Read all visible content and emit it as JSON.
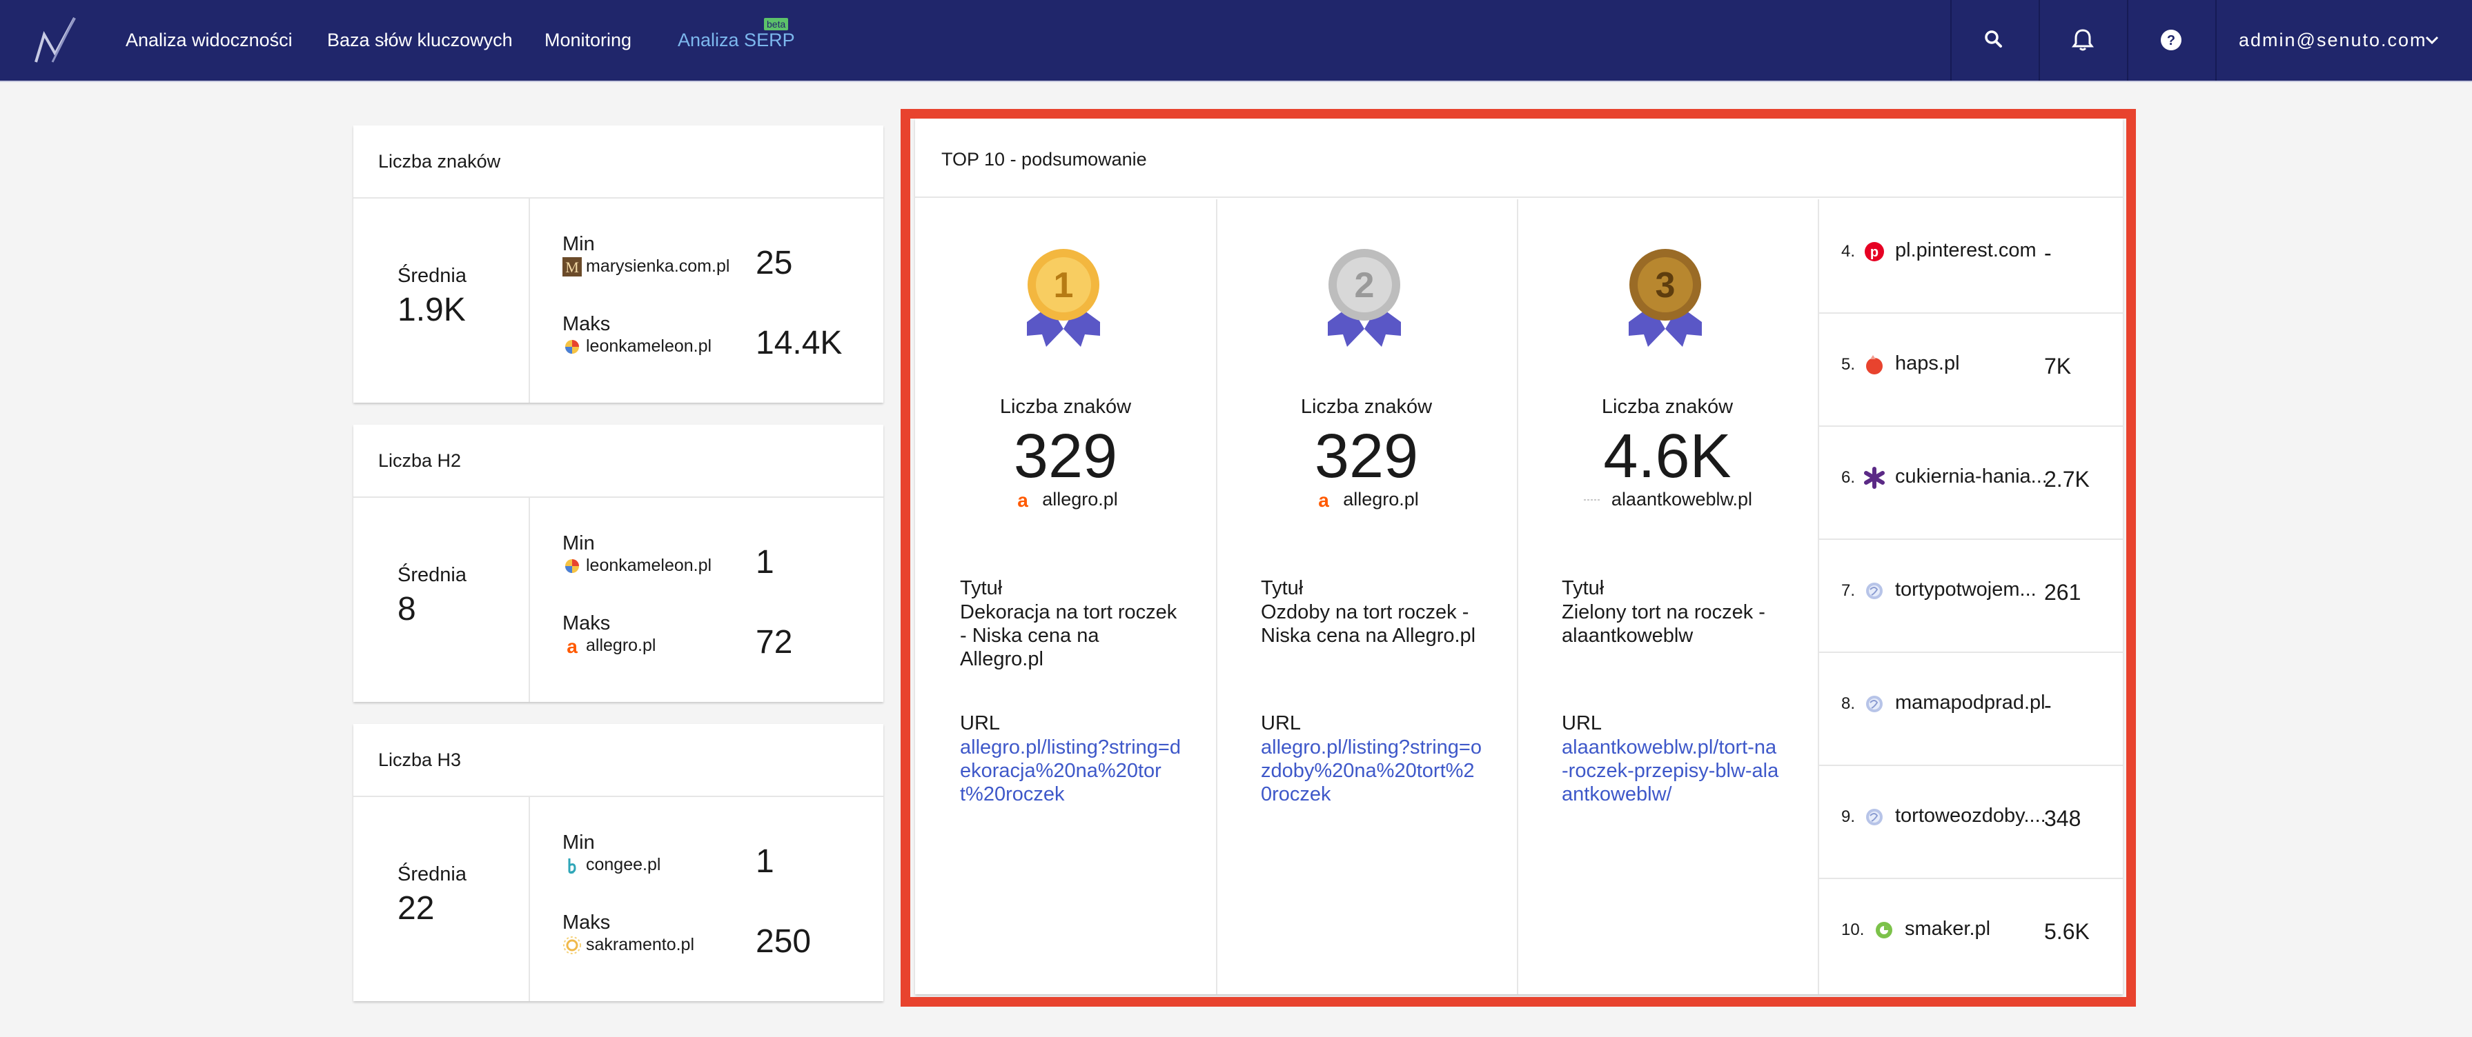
{
  "nav": {
    "items": [
      "Analiza widoczności",
      "Baza słów kluczowych",
      "Monitoring",
      "Analiza SERP"
    ],
    "beta": "beta",
    "user": "admin@senuto.com",
    "icons": [
      "search-icon",
      "bell-icon",
      "help-icon",
      "chevron-down-icon"
    ]
  },
  "colors": {
    "nav_bg": "#20266b",
    "active": "#7db8ee",
    "link": "#3e58c9",
    "highlight": "#e8432e"
  },
  "stats": [
    {
      "title": "Liczba znaków",
      "avg_label": "Średnia",
      "avg": "1.9K",
      "min_label": "Min",
      "min_domain": "marysienka.com.pl",
      "min_value": "25",
      "max_label": "Maks",
      "max_domain": "leonkameleon.pl",
      "max_value": "14.4K"
    },
    {
      "title": "Liczba H2",
      "avg_label": "Średnia",
      "avg": "8",
      "min_label": "Min",
      "min_domain": "leonkameleon.pl",
      "min_value": "1",
      "max_label": "Maks",
      "max_domain": "allegro.pl",
      "max_value": "72"
    },
    {
      "title": "Liczba H3",
      "avg_label": "Średnia",
      "avg": "22",
      "min_label": "Min",
      "min_domain": "congee.pl",
      "min_value": "1",
      "max_label": "Maks",
      "max_domain": "sakramento.pl",
      "max_value": "250"
    }
  ],
  "top10": {
    "title": "TOP 10 - podsumowanie",
    "podium": [
      {
        "place": "1",
        "metric": "Liczba znaków",
        "value": "329",
        "domain": "allegro.pl",
        "title_label": "Tytuł",
        "title": "Dekoracja na tort roczek - Niska cena na Allegro.pl",
        "url_label": "URL",
        "url": "allegro.pl/listing?string=dekoracja%20na%20tort%20roczek"
      },
      {
        "place": "2",
        "metric": "Liczba znaków",
        "value": "329",
        "domain": "allegro.pl",
        "title_label": "Tytuł",
        "title": "Ozdoby na tort roczek - Niska cena na Allegro.pl",
        "url_label": "URL",
        "url": "allegro.pl/listing?string=ozdoby%20na%20tort%20roczek"
      },
      {
        "place": "3",
        "metric": "Liczba znaków",
        "value": "4.6K",
        "domain": "alaantkoweblw.pl",
        "title_label": "Tytuł",
        "title": "Zielony tort na roczek - alaantkoweblw",
        "url_label": "URL",
        "url": "alaantkoweblw.pl/tort-na-roczek-przepisy-blw-alaantkoweblw/"
      }
    ],
    "ranks": [
      {
        "num": "4.",
        "domain": "pl.pinterest.com",
        "value": "-"
      },
      {
        "num": "5.",
        "domain": "haps.pl",
        "value": "7K"
      },
      {
        "num": "6.",
        "domain": "cukiernia-hania...",
        "value": "2.7K"
      },
      {
        "num": "7.",
        "domain": "tortypotwojem...",
        "value": "261"
      },
      {
        "num": "8.",
        "domain": "mamapodprad.pl",
        "value": "-"
      },
      {
        "num": "9.",
        "domain": "tortoweozdoby....",
        "value": "348"
      },
      {
        "num": "10.",
        "domain": "smaker.pl",
        "value": "5.6K"
      }
    ]
  }
}
